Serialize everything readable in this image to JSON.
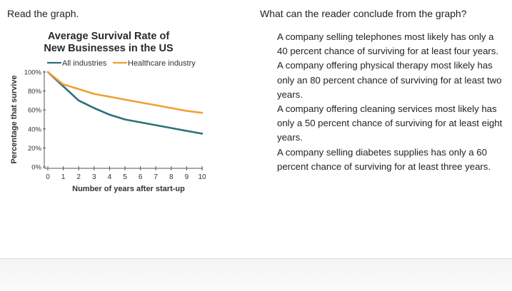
{
  "question": {
    "left_prompt": "Read the graph.",
    "right_prompt": "What can the reader conclude from the graph?",
    "options": [
      "A company selling telephones most likely has only a 40 percent chance of surviving for at least four years.",
      "A company offering physical therapy most likely has only an 80 percent chance of surviving for at least two years.",
      "A company offering cleaning services most likely has only a 50 percent chance of surviving for at least eight years.",
      "A company selling diabetes supplies has only a 60 percent chance of surviving for at least three years."
    ]
  },
  "chart_data": {
    "type": "line",
    "title": "Average Survival Rate of New Businesses in the US",
    "title_lines": [
      "Average Survival Rate of",
      "New Businesses in the US"
    ],
    "xlabel": "Number of years after start-up",
    "ylabel": "Percentage that survive",
    "x": [
      0,
      1,
      2,
      3,
      4,
      5,
      6,
      7,
      8,
      9,
      10
    ],
    "xlim": [
      0,
      10
    ],
    "ylim": [
      0,
      100
    ],
    "x_ticks": [
      "0",
      "1",
      "2",
      "3",
      "4",
      "5",
      "6",
      "7",
      "8",
      "9",
      "10"
    ],
    "y_ticks": [
      "0%",
      "20%",
      "40%",
      "60%",
      "80%",
      "100%"
    ],
    "y_tick_values": [
      0,
      20,
      40,
      60,
      80,
      100
    ],
    "legend_position": "top",
    "grid": false,
    "series": [
      {
        "name": "All industries",
        "color": "#2f6f7a",
        "values": [
          100,
          85,
          70,
          62,
          55,
          50,
          47,
          44,
          41,
          38,
          35
        ]
      },
      {
        "name": "Healthcare industry",
        "color": "#f0a030",
        "values": [
          100,
          87,
          82,
          77,
          74,
          71,
          68,
          65,
          62,
          59,
          57
        ]
      }
    ]
  }
}
